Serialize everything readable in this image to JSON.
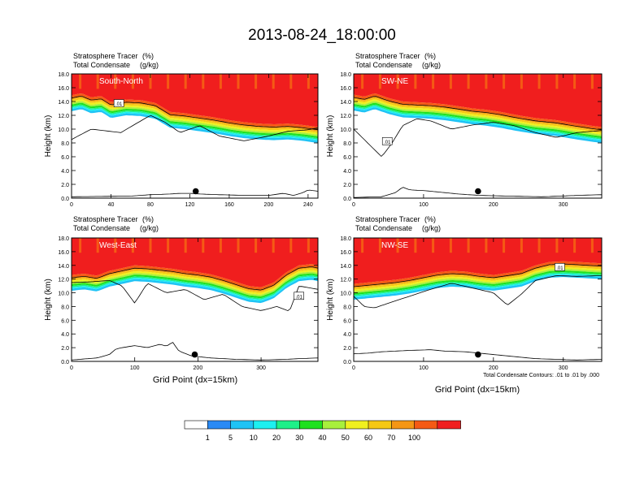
{
  "title": "2013-08-24_18:00:00",
  "colors": {
    "levels": [
      "#ffffff",
      "#2a8af5",
      "#1ec3f5",
      "#1df0f0",
      "#1df089",
      "#1ee11e",
      "#a8f03c",
      "#f0f01e",
      "#f5c814",
      "#f59614",
      "#f55a14",
      "#f01e1e"
    ],
    "contour": "#000000"
  },
  "chart_data": [
    {
      "type": "contour",
      "id": "south-north",
      "label": "South-North",
      "var1": "Stratosphere Tracer",
      "unit1": "(%)",
      "var2": "Total Condensate",
      "unit2": "(g/kg)",
      "ylabel": "Height (km)",
      "xlabel": "",
      "xlim": [
        0,
        250
      ],
      "ylim": [
        0,
        18
      ],
      "xticks": [
        0,
        40,
        80,
        120,
        160,
        200,
        240
      ],
      "yticks": [
        "0.0",
        "2.0",
        "4.0",
        "6.0",
        "8.0",
        "10.0",
        "12.0",
        "14.0",
        "16.0",
        "18.0"
      ],
      "tropopause": [
        [
          0,
          14.9
        ],
        [
          10,
          15.2
        ],
        [
          20,
          14.6
        ],
        [
          30,
          14.8
        ],
        [
          40,
          13.9
        ],
        [
          55,
          14.3
        ],
        [
          70,
          14.2
        ],
        [
          85,
          13.8
        ],
        [
          100,
          12.5
        ],
        [
          115,
          12.3
        ],
        [
          130,
          12.0
        ],
        [
          145,
          11.7
        ],
        [
          160,
          11.3
        ],
        [
          175,
          11.0
        ],
        [
          190,
          10.8
        ],
        [
          205,
          10.7
        ],
        [
          220,
          10.8
        ],
        [
          235,
          10.6
        ],
        [
          250,
          10.3
        ]
      ],
      "condensate_bottom": [
        [
          0,
          8.5
        ],
        [
          20,
          10.0
        ],
        [
          50,
          9.5
        ],
        [
          80,
          12.0
        ],
        [
          95,
          11.0
        ],
        [
          110,
          9.5
        ],
        [
          130,
          10.5
        ],
        [
          150,
          9.0
        ],
        [
          175,
          8.3
        ],
        [
          200,
          9.0
        ],
        [
          220,
          9.7
        ],
        [
          240,
          9.9
        ],
        [
          250,
          10.2
        ]
      ],
      "terrain": [
        [
          0,
          0.2
        ],
        [
          60,
          0.3
        ],
        [
          80,
          0.5
        ],
        [
          100,
          0.6
        ],
        [
          110,
          0.7
        ],
        [
          120,
          0.7
        ],
        [
          130,
          0.6
        ],
        [
          150,
          0.5
        ],
        [
          175,
          0.4
        ],
        [
          200,
          0.4
        ],
        [
          215,
          0.7
        ],
        [
          225,
          0.4
        ],
        [
          235,
          0.8
        ],
        [
          240,
          1.2
        ],
        [
          250,
          1.0
        ]
      ],
      "marker": {
        "x": 126,
        "y": 1.0
      },
      "contour_label": {
        "x": 48,
        "y": 13.7,
        "text": ".01"
      }
    },
    {
      "type": "contour",
      "id": "sw-ne",
      "label": "SW-NE",
      "var1": "Stratosphere Tracer",
      "unit1": "(%)",
      "var2": "Total Condensate",
      "unit2": "(g/kg)",
      "ylabel": "Height (km)",
      "xlabel": "",
      "xlim": [
        0,
        355
      ],
      "ylim": [
        0,
        18
      ],
      "xticks": [
        0,
        100,
        200,
        300
      ],
      "yticks": [
        "0.0",
        "2.0",
        "4.0",
        "6.0",
        "8.0",
        "10.0",
        "12.0",
        "14.0",
        "16.0",
        "18.0"
      ],
      "tropopause": [
        [
          0,
          15.0
        ],
        [
          15,
          14.7
        ],
        [
          30,
          15.2
        ],
        [
          50,
          14.5
        ],
        [
          70,
          14.0
        ],
        [
          90,
          13.9
        ],
        [
          110,
          13.8
        ],
        [
          130,
          13.6
        ],
        [
          150,
          13.3
        ],
        [
          170,
          13.0
        ],
        [
          190,
          12.8
        ],
        [
          210,
          12.5
        ],
        [
          230,
          12.1
        ],
        [
          260,
          11.6
        ],
        [
          290,
          11.3
        ],
        [
          320,
          10.8
        ],
        [
          340,
          10.5
        ],
        [
          355,
          10.3
        ]
      ],
      "condensate_bottom": [
        [
          0,
          10.0
        ],
        [
          20,
          8.0
        ],
        [
          40,
          6.0
        ],
        [
          55,
          8.0
        ],
        [
          70,
          10.5
        ],
        [
          90,
          11.5
        ],
        [
          110,
          11.2
        ],
        [
          140,
          10.0
        ],
        [
          170,
          10.6
        ],
        [
          200,
          11.0
        ],
        [
          230,
          10.5
        ],
        [
          260,
          9.5
        ],
        [
          290,
          8.8
        ],
        [
          320,
          9.5
        ],
        [
          355,
          9.8
        ]
      ],
      "terrain": [
        [
          0,
          0.1
        ],
        [
          40,
          0.2
        ],
        [
          60,
          0.8
        ],
        [
          70,
          1.6
        ],
        [
          80,
          1.2
        ],
        [
          100,
          1.1
        ],
        [
          120,
          0.9
        ],
        [
          150,
          0.6
        ],
        [
          180,
          0.4
        ],
        [
          220,
          0.3
        ],
        [
          270,
          0.2
        ],
        [
          320,
          0.4
        ],
        [
          355,
          0.5
        ]
      ],
      "marker": {
        "x": 178,
        "y": 1.0
      },
      "contour_label": {
        "x": 48,
        "y": 8.2,
        "text": ".01"
      }
    },
    {
      "type": "contour",
      "id": "west-east",
      "label": "West-East",
      "var1": "Stratosphere Tracer",
      "unit1": "(%)",
      "var2": "Total Condensate",
      "unit2": "(g/kg)",
      "ylabel": "Height (km)",
      "xlabel": "Grid Point (dx=15km)",
      "xlim": [
        0,
        390
      ],
      "ylim": [
        0,
        18
      ],
      "xticks": [
        0,
        100,
        200,
        300
      ],
      "yticks": [
        "0.0",
        "2.0",
        "4.0",
        "6.0",
        "8.0",
        "10.0",
        "12.0",
        "14.0",
        "16.0",
        "18.0"
      ],
      "tropopause": [
        [
          0,
          12.6
        ],
        [
          20,
          12.8
        ],
        [
          40,
          12.5
        ],
        [
          60,
          13.2
        ],
        [
          80,
          13.6
        ],
        [
          100,
          14.0
        ],
        [
          120,
          13.9
        ],
        [
          140,
          13.7
        ],
        [
          160,
          13.5
        ],
        [
          180,
          13.2
        ],
        [
          200,
          13.0
        ],
        [
          220,
          12.7
        ],
        [
          240,
          12.2
        ],
        [
          260,
          11.6
        ],
        [
          280,
          11.0
        ],
        [
          300,
          10.8
        ],
        [
          320,
          11.5
        ],
        [
          340,
          13.0
        ],
        [
          360,
          14.0
        ],
        [
          380,
          14.2
        ],
        [
          390,
          14.0
        ]
      ],
      "condensate_bottom": [
        [
          0,
          11.5
        ],
        [
          30,
          11.6
        ],
        [
          60,
          11.8
        ],
        [
          80,
          11.0
        ],
        [
          100,
          8.5
        ],
        [
          120,
          11.4
        ],
        [
          150,
          10.0
        ],
        [
          180,
          10.5
        ],
        [
          210,
          9.0
        ],
        [
          240,
          9.8
        ],
        [
          270,
          8.0
        ],
        [
          300,
          7.4
        ],
        [
          325,
          8.0
        ],
        [
          345,
          7.3
        ],
        [
          360,
          11.0
        ],
        [
          390,
          10.5
        ]
      ],
      "terrain": [
        [
          0,
          0.2
        ],
        [
          40,
          0.5
        ],
        [
          60,
          1.0
        ],
        [
          70,
          1.8
        ],
        [
          80,
          2.0
        ],
        [
          100,
          2.3
        ],
        [
          120,
          2.0
        ],
        [
          140,
          2.5
        ],
        [
          150,
          2.2
        ],
        [
          160,
          2.8
        ],
        [
          170,
          1.5
        ],
        [
          190,
          0.8
        ],
        [
          220,
          0.5
        ],
        [
          260,
          0.3
        ],
        [
          300,
          0.2
        ],
        [
          340,
          0.3
        ],
        [
          360,
          0.4
        ],
        [
          390,
          0.5
        ]
      ],
      "marker": {
        "x": 195,
        "y": 1.0
      },
      "contour_label": {
        "x": 360,
        "y": 9.5,
        "text": ".01"
      }
    },
    {
      "type": "contour",
      "id": "nw-se",
      "label": "NW-SE",
      "var1": "Stratosphere Tracer",
      "unit1": "(%)",
      "var2": "Total Condensate",
      "unit2": "(g/kg)",
      "ylabel": "Height (km)",
      "xlabel": "Grid Point (dx=15km)",
      "xlim": [
        0,
        355
      ],
      "ylim": [
        0,
        18
      ],
      "xticks": [
        0,
        100,
        200,
        300
      ],
      "yticks": [
        "0.0",
        "2.0",
        "4.0",
        "6.0",
        "8.0",
        "10.0",
        "12.0",
        "14.0",
        "16.0",
        "18.0"
      ],
      "tropopause": [
        [
          0,
          11.3
        ],
        [
          20,
          11.5
        ],
        [
          40,
          11.7
        ],
        [
          60,
          11.9
        ],
        [
          80,
          12.2
        ],
        [
          100,
          12.6
        ],
        [
          120,
          13.0
        ],
        [
          140,
          13.2
        ],
        [
          160,
          13.1
        ],
        [
          180,
          12.8
        ],
        [
          200,
          12.6
        ],
        [
          220,
          12.9
        ],
        [
          240,
          13.2
        ],
        [
          260,
          14.0
        ],
        [
          280,
          14.5
        ],
        [
          300,
          14.6
        ],
        [
          320,
          14.5
        ],
        [
          355,
          14.3
        ]
      ],
      "condensate_bottom": [
        [
          0,
          9.5
        ],
        [
          15,
          8.0
        ],
        [
          30,
          7.8
        ],
        [
          50,
          8.5
        ],
        [
          80,
          9.5
        ],
        [
          110,
          10.5
        ],
        [
          140,
          11.4
        ],
        [
          170,
          10.7
        ],
        [
          200,
          10.0
        ],
        [
          220,
          8.2
        ],
        [
          240,
          9.8
        ],
        [
          260,
          11.8
        ],
        [
          290,
          12.5
        ],
        [
          320,
          12.4
        ],
        [
          355,
          12.5
        ]
      ],
      "terrain": [
        [
          0,
          1.1
        ],
        [
          20,
          1.2
        ],
        [
          40,
          1.4
        ],
        [
          60,
          1.5
        ],
        [
          80,
          1.6
        ],
        [
          110,
          1.7
        ],
        [
          130,
          1.5
        ],
        [
          160,
          1.4
        ],
        [
          200,
          1.0
        ],
        [
          230,
          0.7
        ],
        [
          260,
          0.4
        ],
        [
          290,
          0.3
        ],
        [
          320,
          0.2
        ],
        [
          355,
          0.3
        ]
      ],
      "marker": {
        "x": 178,
        "y": 1.0
      },
      "contour_label": {
        "x": 295,
        "y": 13.7,
        "text": ".01"
      },
      "footer": "Total Condensate Contours: .01 to .01 by .000"
    }
  ],
  "colorbar": {
    "labels": [
      "1",
      "5",
      "10",
      "20",
      "30",
      "40",
      "50",
      "60",
      "70",
      "100"
    ]
  }
}
